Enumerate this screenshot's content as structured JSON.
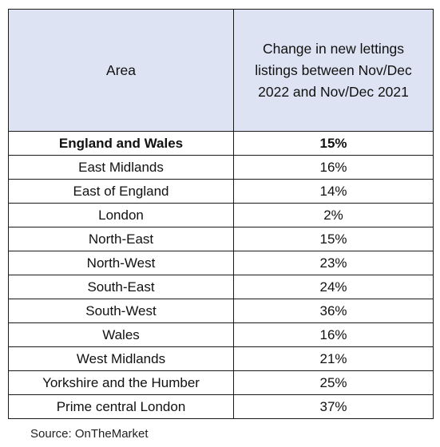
{
  "chart_data": {
    "type": "table",
    "columns": [
      "Area",
      "Change in new lettings listings between Nov/Dec 2022 and Nov/Dec 2021"
    ],
    "rows": [
      {
        "area": "England and Wales",
        "change": "15%",
        "bold": true
      },
      {
        "area": "East Midlands",
        "change": "16%",
        "bold": false
      },
      {
        "area": "East of England",
        "change": "14%",
        "bold": false
      },
      {
        "area": "London",
        "change": "2%",
        "bold": false
      },
      {
        "area": "North-East",
        "change": "15%",
        "bold": false
      },
      {
        "area": "North-West",
        "change": "23%",
        "bold": false
      },
      {
        "area": "South-East",
        "change": "24%",
        "bold": false
      },
      {
        "area": "South-West",
        "change": "36%",
        "bold": false
      },
      {
        "area": "Wales",
        "change": "16%",
        "bold": false
      },
      {
        "area": "West Midlands",
        "change": "21%",
        "bold": false
      },
      {
        "area": "Yorkshire and the Humber",
        "change": "25%",
        "bold": false
      },
      {
        "area": "Prime central London",
        "change": "37%",
        "bold": false
      }
    ],
    "source": "Source: OnTheMarket"
  },
  "colors": {
    "header_background": "#dde3f2",
    "border": "#1a1a1a",
    "text": "#111111"
  }
}
